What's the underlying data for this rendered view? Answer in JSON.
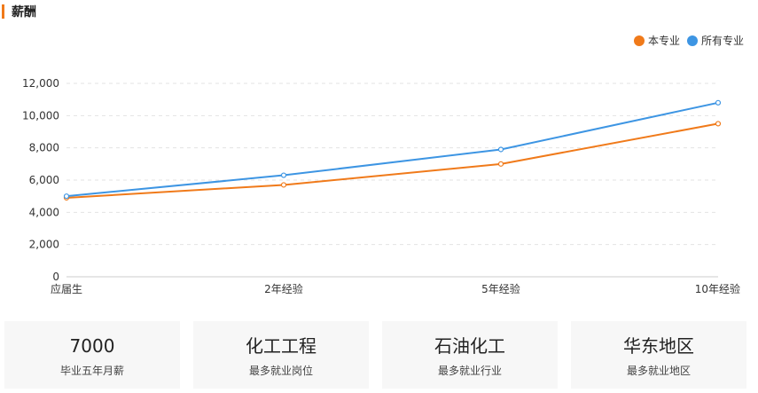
{
  "section": {
    "title": "薪酬",
    "accent_color": "#f07a1a"
  },
  "chart_data": {
    "type": "line",
    "categories": [
      "应届生",
      "2年经验",
      "5年经验",
      "10年经验"
    ],
    "series": [
      {
        "name": "本专业",
        "color": "#f07a1a",
        "values": [
          4900,
          5700,
          7000,
          9500
        ]
      },
      {
        "name": "所有专业",
        "color": "#3d95e3",
        "values": [
          5000,
          6300,
          7900,
          10800
        ]
      }
    ],
    "ylim": [
      0,
      12000
    ],
    "yticks": [
      0,
      2000,
      4000,
      6000,
      8000,
      10000,
      12000
    ],
    "ytick_labels": [
      "0",
      "2,000",
      "4,000",
      "6,000",
      "8,000",
      "10,000",
      "12,000"
    ],
    "grid": true,
    "legend": "top-right"
  },
  "cards": [
    {
      "value": "7000",
      "label": "毕业五年月薪"
    },
    {
      "value": "化工工程",
      "label": "最多就业岗位"
    },
    {
      "value": "石油化工",
      "label": "最多就业行业"
    },
    {
      "value": "华东地区",
      "label": "最多就业地区"
    }
  ]
}
